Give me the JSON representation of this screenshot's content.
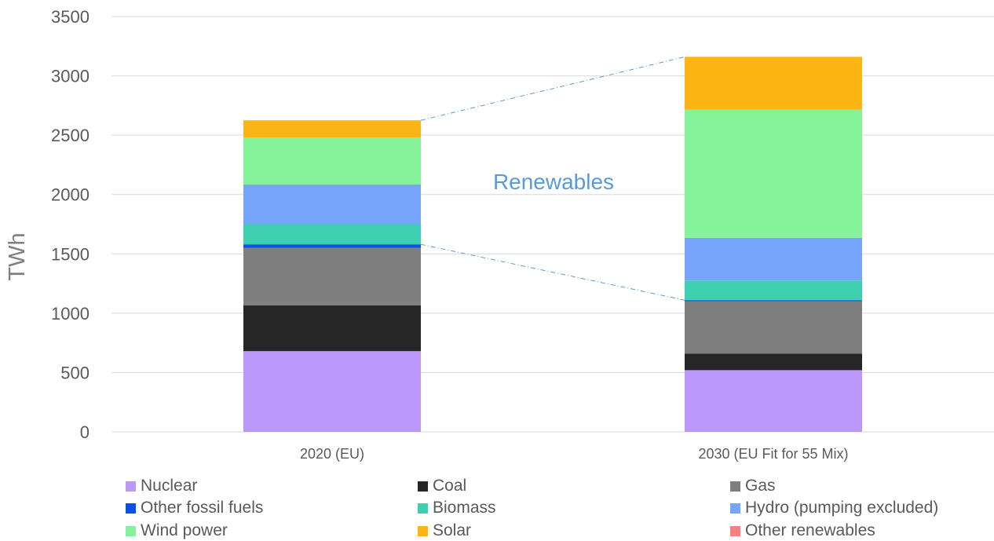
{
  "chart_data": {
    "type": "bar",
    "stacked": true,
    "ylabel": "TWh",
    "ylim": [
      0,
      3500
    ],
    "yticks": [
      0,
      500,
      1000,
      1500,
      2000,
      2500,
      3000,
      3500
    ],
    "grid": true,
    "legend_position": "bottom",
    "categories": [
      "2020 (EU)",
      "2030 (EU Fit for 55 Mix)"
    ],
    "series": [
      {
        "name": "Nuclear",
        "color": "#bb99fa",
        "values": [
          680,
          520
        ]
      },
      {
        "name": "Coal",
        "color": "#262626",
        "values": [
          385,
          140
        ]
      },
      {
        "name": "Gas",
        "color": "#7f7f7f",
        "values": [
          485,
          440
        ]
      },
      {
        "name": "Other fossil fuels",
        "color": "#0a50e6",
        "values": [
          30,
          10
        ]
      },
      {
        "name": "Biomass",
        "color": "#3ecfb0",
        "values": [
          170,
          165
        ]
      },
      {
        "name": "Hydro (pumping excluded)",
        "color": "#77a5fb",
        "values": [
          335,
          360
        ]
      },
      {
        "name": "Wind power",
        "color": "#85f39a",
        "values": [
          395,
          1080
        ]
      },
      {
        "name": "Solar",
        "color": "#fdb515",
        "values": [
          145,
          445
        ]
      },
      {
        "name": "Other renewables",
        "color": "#f48282",
        "values": [
          0,
          0
        ]
      }
    ],
    "annotations": [
      {
        "text": "Renewables",
        "color": "#5b9bd5"
      }
    ]
  }
}
